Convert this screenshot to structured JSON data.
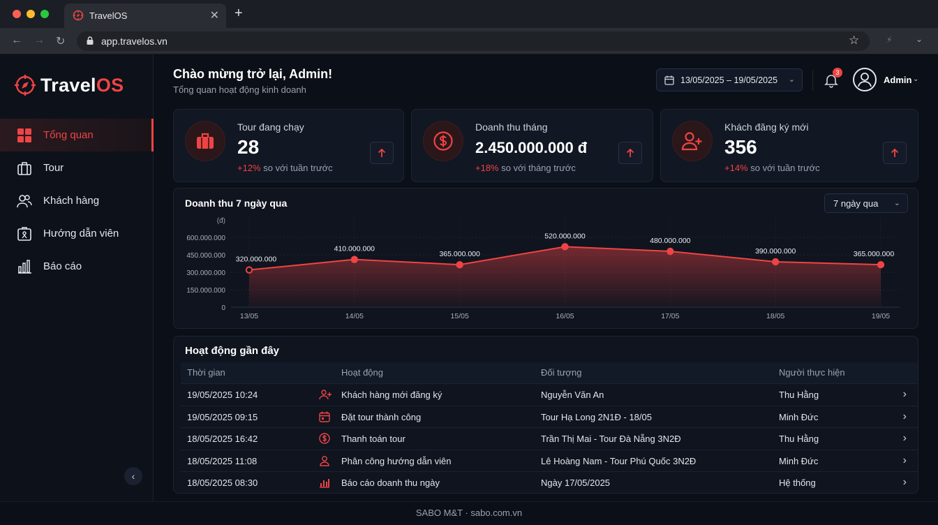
{
  "browser": {
    "tab_title": "TravelOS",
    "url": "app.travelos.vn"
  },
  "brand": {
    "name_white": "Travel",
    "name_red": "OS",
    "accent": "#ef4444"
  },
  "sidebar": {
    "items": [
      {
        "label": "Tổng quan",
        "icon": "grid-icon",
        "active": true
      },
      {
        "label": "Tour",
        "icon": "suitcase-icon"
      },
      {
        "label": "Khách hàng",
        "icon": "users-icon"
      },
      {
        "label": "Hướng dẫn viên",
        "icon": "guide-badge-icon"
      },
      {
        "label": "Báo cáo",
        "icon": "bar-chart-icon"
      }
    ],
    "collapse_glyph": "‹"
  },
  "header": {
    "title": "Chào mừng trở lại, Admin!",
    "subtitle": "Tổng quan hoạt động kinh doanh",
    "date_range": "13/05/2025 – 19/05/2025",
    "notifications": "3",
    "user": "Admin"
  },
  "stats": [
    {
      "label": "Tour đang chạy",
      "value": "28",
      "delta": "+12%",
      "delta_text": " so với tuần trước"
    },
    {
      "label": "Doanh thu tháng",
      "value": "2.450.000.000 đ",
      "delta": "+18%",
      "delta_text": " so với tháng trước"
    },
    {
      "label": "Khách đăng ký mới",
      "value": "356",
      "delta": "+14%",
      "delta_text": " so với tuần trước"
    }
  ],
  "chart_card": {
    "title": "Doanh thu 7 ngày qua",
    "range": "7 ngày qua"
  },
  "chart_data": {
    "type": "area",
    "ylabel": "(đ)",
    "ylim": [
      0,
      600000000
    ],
    "yticks": [
      "600.000.000",
      "450.000.000",
      "300.000.000",
      "150.000.000",
      "0"
    ],
    "categories": [
      "13/05",
      "14/05",
      "15/05",
      "16/05",
      "17/05",
      "18/05",
      "19/05"
    ],
    "values": [
      320000000,
      410000000,
      365000000,
      520000000,
      480000000,
      390000000,
      365000000
    ],
    "labels": [
      "320.000.000",
      "410.000.000",
      "365.000.000",
      "520.000.000",
      "480.000.000",
      "390.000.000",
      "365.000.000"
    ],
    "color": "#ef4444",
    "grid": true
  },
  "activity": {
    "title": "Hoạt động gần đây",
    "columns": [
      "Thời gian",
      "Hoạt động",
      "Đối tượng",
      "Người thực hiện"
    ],
    "rows": [
      {
        "time": "19/05/2025 10:24",
        "icon": "user-plus-icon",
        "action": "Khách hàng mới đăng ký",
        "target": "Nguyễn Văn An",
        "by": "Thu Hằng"
      },
      {
        "time": "19/05/2025 09:15",
        "icon": "calendar-icon",
        "action": "Đặt tour thành công",
        "target": "Tour Hạ Long 2N1Đ - 18/05",
        "by": "Minh Đức"
      },
      {
        "time": "18/05/2025 16:42",
        "icon": "dollar-icon",
        "action": "Thanh toán tour",
        "target": "Trần Thị Mai - Tour Đà Nẵng 3N2Đ",
        "by": "Thu Hằng"
      },
      {
        "time": "18/05/2025 11:08",
        "icon": "person-icon",
        "action": "Phân công hướng dẫn viên",
        "target": "Lê Hoàng Nam - Tour Phú Quốc 3N2Đ",
        "by": "Minh Đức"
      },
      {
        "time": "18/05/2025 08:30",
        "icon": "report-icon",
        "action": "Báo cáo doanh thu ngày",
        "target": "Ngày 17/05/2025",
        "by": "Hệ thống"
      }
    ]
  },
  "footer": {
    "text": "SABO M&T · sabo.com.vn"
  }
}
